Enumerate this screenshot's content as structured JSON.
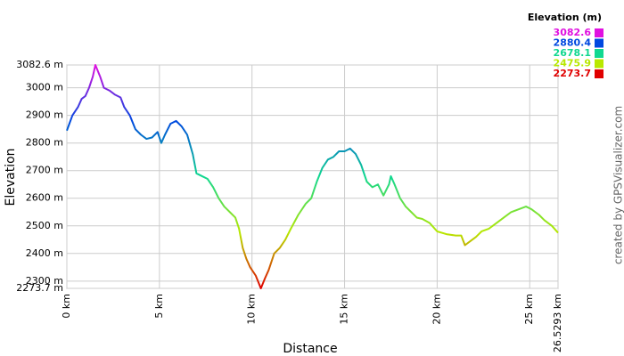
{
  "chart_data": {
    "type": "line",
    "xlabel": "Distance",
    "ylabel": "Elevation",
    "credit": "created by GPSVisualizer.com",
    "x": [
      0,
      0.3,
      0.6,
      0.8,
      1.0,
      1.2,
      1.4,
      1.54,
      1.8,
      2.0,
      2.3,
      2.6,
      2.9,
      3.1,
      3.4,
      3.7,
      4.0,
      4.3,
      4.6,
      4.9,
      5.1,
      5.3,
      5.6,
      5.9,
      6.2,
      6.5,
      6.8,
      7.0,
      7.3,
      7.6,
      7.9,
      8.2,
      8.5,
      8.8,
      9.1,
      9.3,
      9.5,
      9.7,
      9.9,
      10.2,
      10.48,
      10.7,
      10.9,
      11.2,
      11.5,
      11.8,
      12.1,
      12.5,
      12.9,
      13.2,
      13.5,
      13.8,
      14.1,
      14.4,
      14.7,
      15.0,
      15.3,
      15.6,
      15.9,
      16.2,
      16.5,
      16.8,
      17.1,
      17.4,
      17.5,
      17.7,
      18.0,
      18.3,
      18.6,
      18.9,
      19.2,
      19.6,
      20.0,
      20.5,
      21.0,
      21.3,
      21.5,
      21.8,
      22.1,
      22.4,
      22.8,
      23.2,
      23.6,
      24.0,
      24.4,
      24.8,
      25.1,
      25.5,
      25.8,
      26.2,
      26.5293
    ],
    "values": [
      2845,
      2900,
      2930,
      2960,
      2970,
      3000,
      3040,
      3082.6,
      3040,
      3000,
      2990,
      2975,
      2965,
      2930,
      2900,
      2850,
      2830,
      2815,
      2820,
      2840,
      2800,
      2830,
      2870,
      2880,
      2860,
      2830,
      2760,
      2690,
      2680,
      2670,
      2640,
      2600,
      2570,
      2550,
      2530,
      2490,
      2420,
      2380,
      2350,
      2320,
      2273.7,
      2310,
      2340,
      2400,
      2420,
      2450,
      2490,
      2540,
      2580,
      2600,
      2660,
      2710,
      2740,
      2750,
      2770,
      2770,
      2780,
      2760,
      2720,
      2660,
      2640,
      2650,
      2610,
      2650,
      2680,
      2650,
      2600,
      2570,
      2550,
      2530,
      2525,
      2510,
      2480,
      2470,
      2465,
      2465,
      2430,
      2445,
      2460,
      2480,
      2490,
      2510,
      2530,
      2550,
      2560,
      2570,
      2560,
      2540,
      2520,
      2500,
      2475
    ],
    "xlim": [
      0,
      26.5293
    ],
    "ylim": [
      2273.7,
      3082.6
    ],
    "xticks": [
      {
        "value": 0,
        "label": "0 km"
      },
      {
        "value": 5,
        "label": "5 km"
      },
      {
        "value": 10,
        "label": "10 km"
      },
      {
        "value": 15,
        "label": "15 km"
      },
      {
        "value": 20,
        "label": "20 km"
      },
      {
        "value": 25,
        "label": "25 km"
      },
      {
        "value": 26.5293,
        "label": "26.5293 km"
      }
    ],
    "yticks": [
      {
        "value": 3082.6,
        "label": "3082.6 m"
      },
      {
        "value": 3000,
        "label": "3000 m"
      },
      {
        "value": 2900,
        "label": "2900 m"
      },
      {
        "value": 2800,
        "label": "2800 m"
      },
      {
        "value": 2700,
        "label": "2700 m"
      },
      {
        "value": 2600,
        "label": "2600 m"
      },
      {
        "value": 2500,
        "label": "2500 m"
      },
      {
        "value": 2400,
        "label": "2400 m"
      },
      {
        "value": 2300,
        "label": "2300 m"
      },
      {
        "value": 2273.7,
        "label": "2273.7 m"
      }
    ],
    "grid": true,
    "legend": {
      "title": "Elevation (m)",
      "entries": [
        {
          "value": 3082.6,
          "color": "#e010e0"
        },
        {
          "value": 2880.4,
          "color": "#0048e0"
        },
        {
          "value": 2678.1,
          "color": "#10d890"
        },
        {
          "value": 2475.9,
          "color": "#b8e800"
        },
        {
          "value": 2273.7,
          "color": "#e00000"
        }
      ]
    }
  }
}
